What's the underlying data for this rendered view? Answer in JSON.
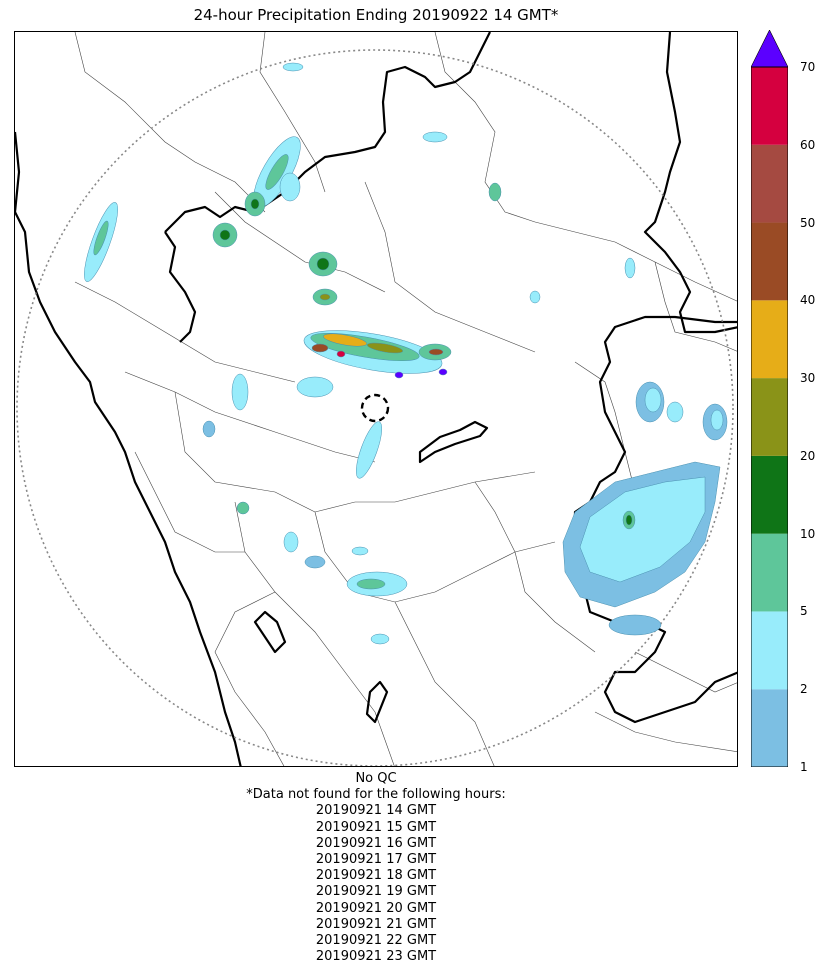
{
  "title": "24-hour Precipitation Ending 20190922 14 GMT*",
  "colorbar": {
    "ticks": [
      "1",
      "2",
      "5",
      "10",
      "20",
      "30",
      "40",
      "50",
      "60",
      "70"
    ],
    "colors": [
      "#7cbfe3",
      "#98ecfb",
      "#5ec69a",
      "#0f7517",
      "#8a9318",
      "#e6ad18",
      "#9a4b25",
      "#a54a41",
      "#d5003f"
    ],
    "extend_color": "#5b00ff"
  },
  "notes": {
    "qc": "No QC",
    "missing_header": "*Data not found for the following hours:",
    "missing_hours": [
      "20190921 14 GMT",
      "20190921 15 GMT",
      "20190921 16 GMT",
      "20190921 17 GMT",
      "20190921 18 GMT",
      "20190921 19 GMT",
      "20190921 20 GMT",
      "20190921 21 GMT",
      "20190921 22 GMT",
      "20190921 23 GMT"
    ]
  }
}
